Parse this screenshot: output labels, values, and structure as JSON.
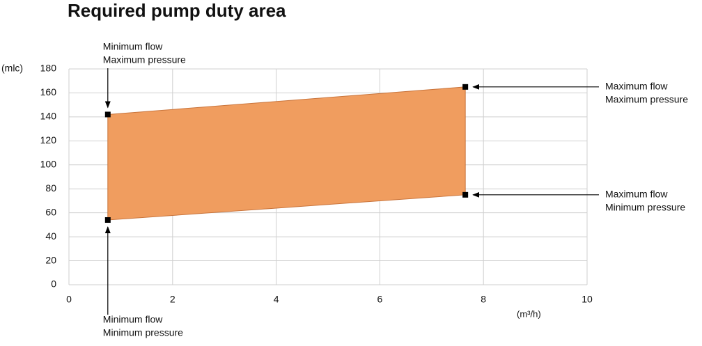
{
  "chart_data": {
    "type": "polygon",
    "title": "Required pump duty area",
    "x": [
      0.75,
      0.75,
      7.65,
      7.65
    ],
    "y": [
      54,
      142,
      165,
      75
    ],
    "point_labels": [
      [
        "Minimum flow",
        "Minimum pressure"
      ],
      [
        "Minimum flow",
        "Maximum pressure"
      ],
      [
        "Maximum flow",
        "Maximum pressure"
      ],
      [
        "Maximum flow",
        "Minimum pressure"
      ]
    ],
    "color": "#f09d5f",
    "edge_color": "#c9743b",
    "marker_color": "#000000",
    "xlabel": "(m³/h)",
    "ylabel": "(mlc)",
    "xlim": [
      0,
      10
    ],
    "xticks": [
      0,
      2,
      4,
      6,
      8,
      10
    ],
    "ylim": [
      0,
      180
    ],
    "yticks": [
      0,
      20,
      40,
      60,
      80,
      100,
      120,
      140,
      160,
      180
    ],
    "grid": true
  }
}
